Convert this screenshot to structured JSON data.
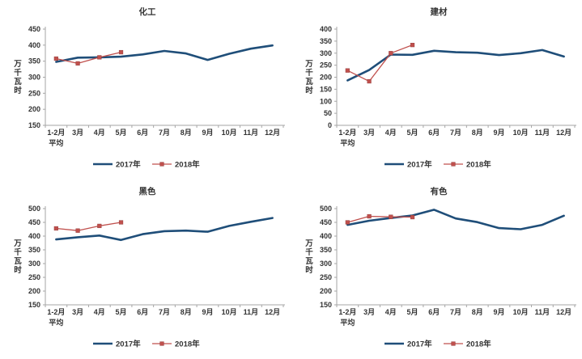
{
  "colors": {
    "series_2017": "#1F4E79",
    "series_2018": "#C0504D",
    "axis_line": "#A6A6A6",
    "text": "#333333",
    "background": "#FFFFFF"
  },
  "legend": {
    "items": [
      "2017年",
      "2018年"
    ]
  },
  "chart_data": [
    {
      "type": "line",
      "title": "化工",
      "xlabel": "",
      "ylabel": "万千瓦时",
      "categories": [
        "1-2月\n平均",
        "3月",
        "4月",
        "5月",
        "6月",
        "7月",
        "8月",
        "9月",
        "10月",
        "11月",
        "12月"
      ],
      "series": [
        {
          "name": "2017年",
          "color": "#1F4E79",
          "marker": "none",
          "values": [
            348,
            361,
            362,
            364,
            371,
            382,
            374,
            354,
            373,
            389,
            399
          ]
        },
        {
          "name": "2018年",
          "color": "#C0504D",
          "marker": "square",
          "values": [
            358,
            343,
            362,
            378,
            null,
            null,
            null,
            null,
            null,
            null,
            null
          ]
        }
      ],
      "ylim": [
        150,
        450
      ],
      "ytick_step": 50,
      "grid": false,
      "legend_position": "bottom"
    },
    {
      "type": "line",
      "title": "建材",
      "xlabel": "",
      "ylabel": "万千瓦时",
      "categories": [
        "1-2月\n平均",
        "3月",
        "4月",
        "5月",
        "6月",
        "7月",
        "8月",
        "9月",
        "10月",
        "11月",
        "12月"
      ],
      "series": [
        {
          "name": "2017年",
          "color": "#1F4E79",
          "marker": "none",
          "values": [
            187,
            230,
            294,
            293,
            310,
            304,
            302,
            292,
            300,
            313,
            286
          ]
        },
        {
          "name": "2018年",
          "color": "#C0504D",
          "marker": "square",
          "values": [
            228,
            183,
            300,
            334,
            null,
            null,
            null,
            null,
            null,
            null,
            null
          ]
        }
      ],
      "ylim": [
        0,
        400
      ],
      "ytick_step": 50,
      "grid": false,
      "legend_position": "bottom"
    },
    {
      "type": "line",
      "title": "黑色",
      "xlabel": "",
      "ylabel": "万千瓦时",
      "categories": [
        "1-2月\n平均",
        "3月",
        "4月",
        "5月",
        "6月",
        "7月",
        "8月",
        "9月",
        "10月",
        "11月",
        "12月"
      ],
      "series": [
        {
          "name": "2017年",
          "color": "#1F4E79",
          "marker": "none",
          "values": [
            388,
            396,
            402,
            386,
            407,
            418,
            420,
            416,
            437,
            452,
            466
          ]
        },
        {
          "name": "2018年",
          "color": "#C0504D",
          "marker": "square",
          "values": [
            428,
            420,
            437,
            450,
            null,
            null,
            null,
            null,
            null,
            null,
            null
          ]
        }
      ],
      "ylim": [
        150,
        500
      ],
      "ytick_step": 50,
      "grid": false,
      "legend_position": "bottom"
    },
    {
      "type": "line",
      "title": "有色",
      "xlabel": "",
      "ylabel": "万千瓦时",
      "categories": [
        "1-2月\n平均",
        "3月",
        "4月",
        "5月",
        "6月",
        "7月",
        "8月",
        "9月",
        "10月",
        "11月",
        "12月"
      ],
      "series": [
        {
          "name": "2017年",
          "color": "#1F4E79",
          "marker": "none",
          "values": [
            441,
            456,
            466,
            475,
            496,
            464,
            451,
            429,
            425,
            441,
            474
          ]
        },
        {
          "name": "2018年",
          "color": "#C0504D",
          "marker": "square",
          "values": [
            450,
            472,
            470,
            469,
            null,
            null,
            null,
            null,
            null,
            null,
            null
          ]
        }
      ],
      "ylim": [
        150,
        500
      ],
      "ytick_step": 50,
      "grid": false,
      "legend_position": "bottom"
    }
  ]
}
